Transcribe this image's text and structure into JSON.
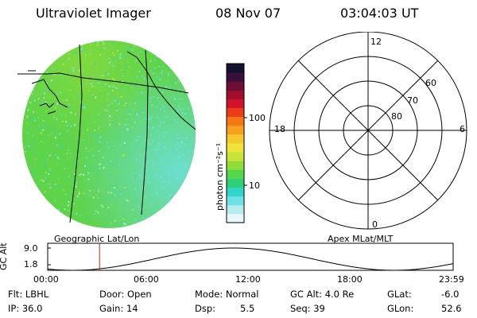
{
  "header": {
    "title": "Ultraviolet Imager",
    "date": "08 Nov 07",
    "time": "03:04:03 UT"
  },
  "colorbar": {
    "unit_label": "photon cm⁻²s⁻¹",
    "tick_high": "100",
    "tick_low": "10",
    "colors": [
      "#e8f7f9",
      "#b7ecef",
      "#6fe0e6",
      "#30d6c8",
      "#2fd07a",
      "#55d54a",
      "#8fdc3a",
      "#c6e33a",
      "#eee33a",
      "#f5c92c",
      "#f7a21e",
      "#f57a16",
      "#ee3c18",
      "#d1122a",
      "#a20f2c",
      "#6c0f35",
      "#3a0f3b",
      "#15122f"
    ]
  },
  "geo_map": {
    "label": "Geographic Lat/Lon",
    "fill_color": "#5ed44a"
  },
  "polar_plot": {
    "label": "Apex MLat/MLT",
    "lat_labels": [
      "60",
      "70",
      "80"
    ],
    "mlt_labels": {
      "top": "12",
      "left": "18",
      "right": "6",
      "bottom": "0"
    }
  },
  "altitude_plot": {
    "ylabel": "GC Alt",
    "y_ticks": [
      "9.0",
      "1.8"
    ],
    "x_ticks": [
      "00:00",
      "06:00",
      "12:00",
      "18:00",
      "23:59"
    ],
    "current_time_marker_hours": 3.07,
    "marker_color": "#cc2200"
  },
  "info": {
    "filter": "Flt: LBHL",
    "ip": "IP: 36.0",
    "door": "Door: Open",
    "gain": "Gain: 14",
    "mode": "Mode: Normal",
    "dsp_label": "Dsp:",
    "dsp_value": "5.5",
    "gc_alt": "GC Alt: 4.0 Re",
    "seq": "Seq: 39",
    "glat_label": "GLat:",
    "glat_value": "-6.0",
    "glon_label": "GLon:",
    "glon_value": "52.6"
  }
}
